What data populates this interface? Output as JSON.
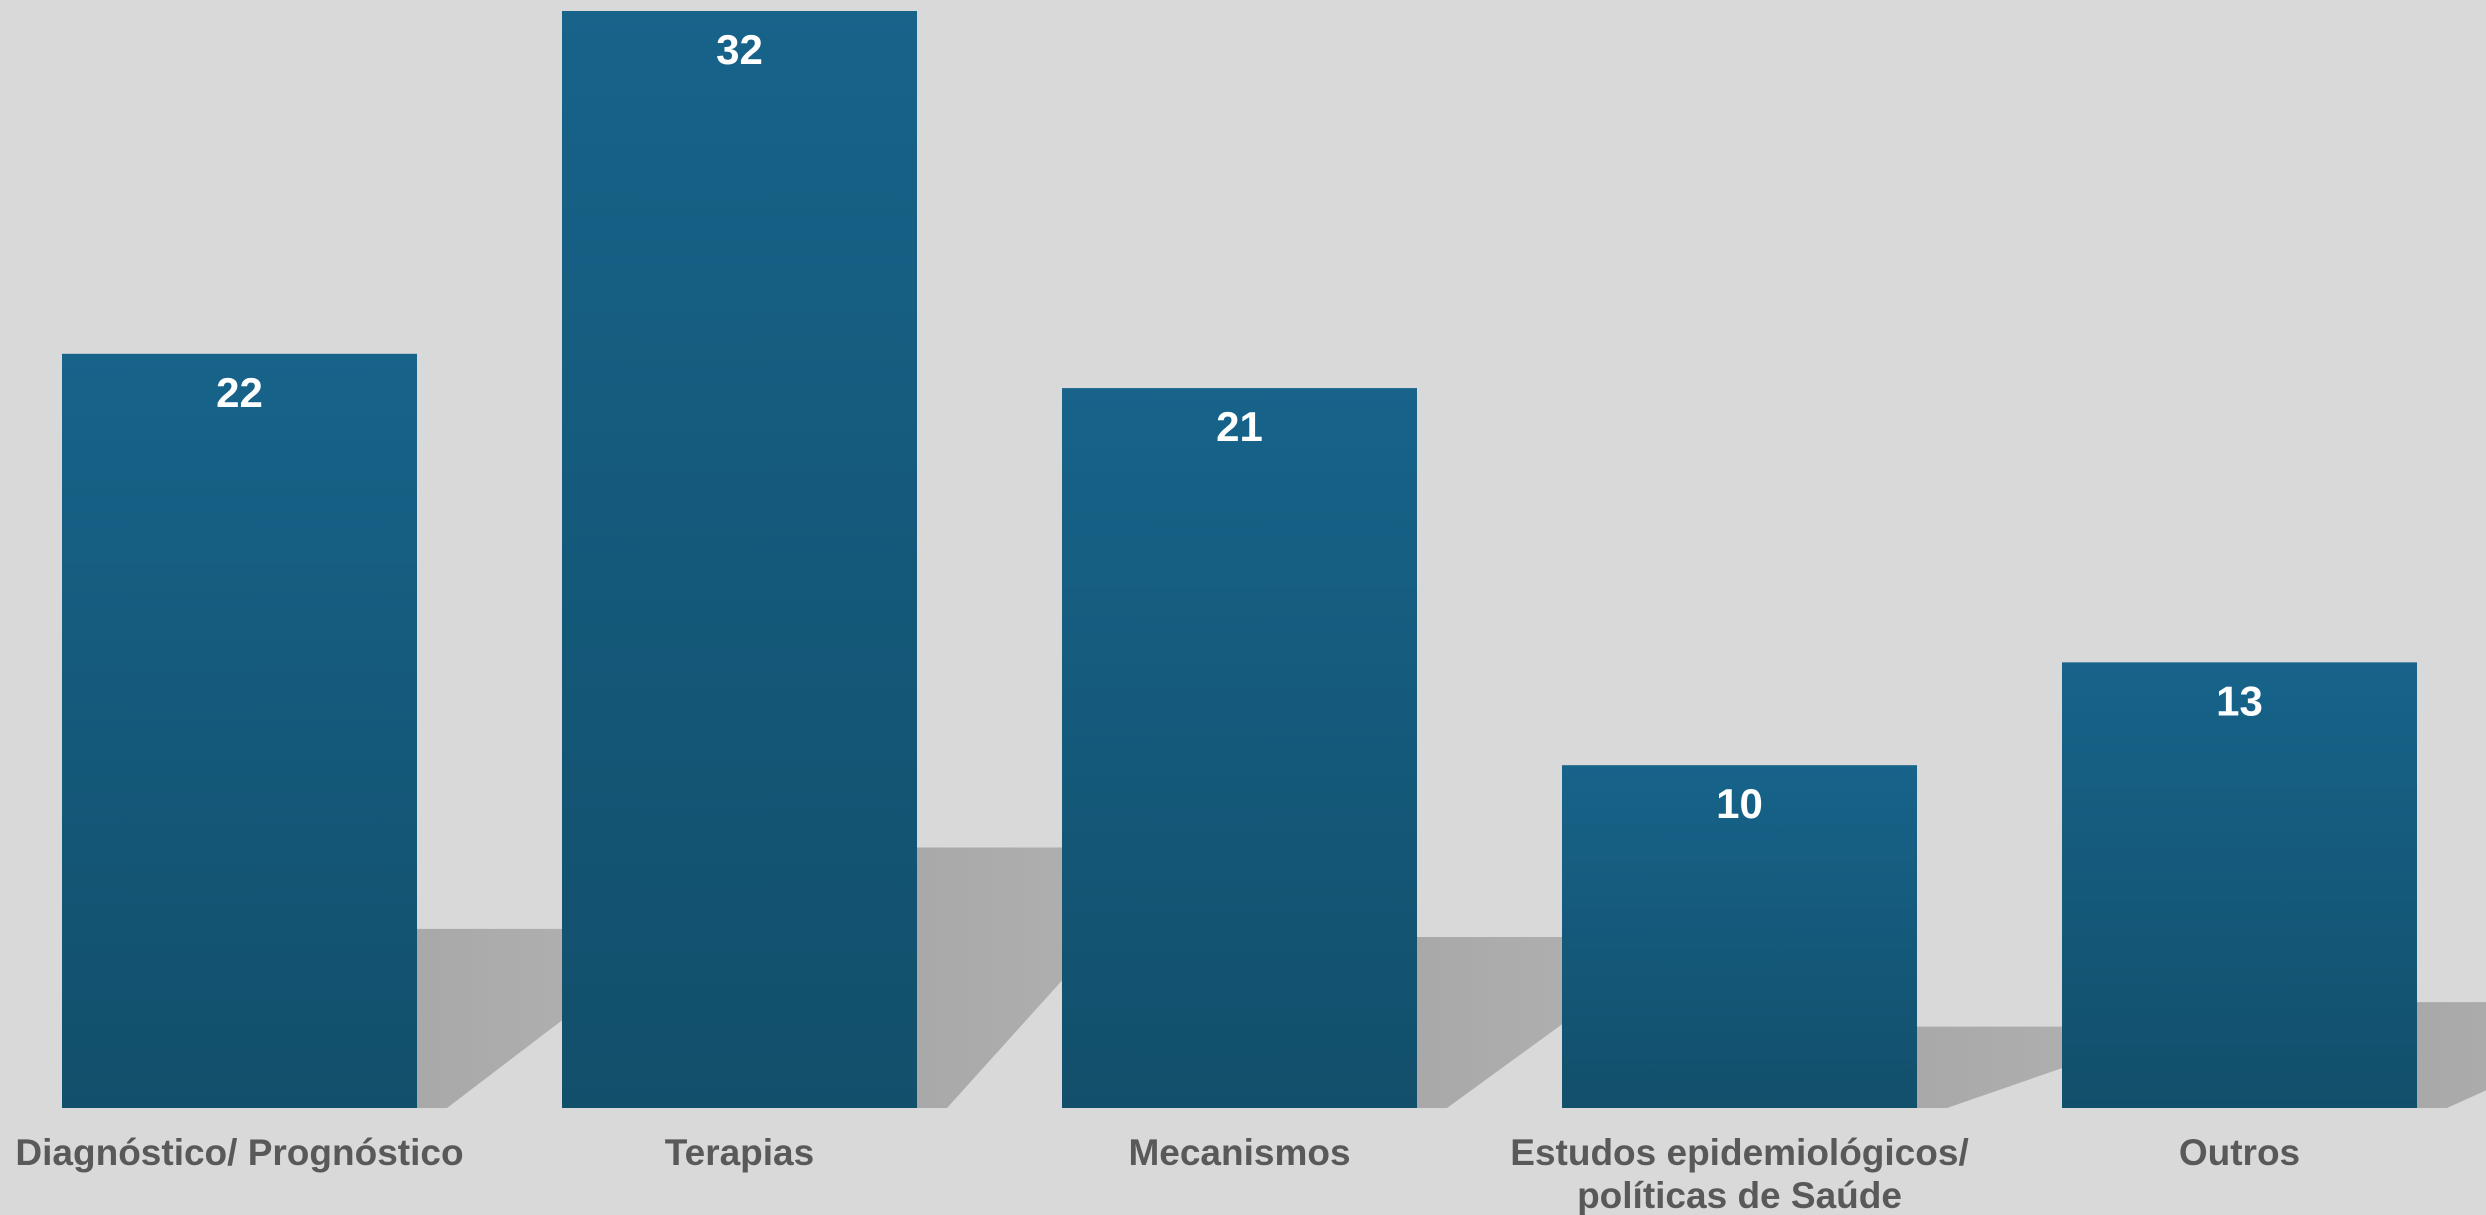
{
  "chart_data": {
    "type": "bar",
    "categories": [
      [
        "Diagnóstico/ Prognóstico"
      ],
      [
        "Terapias"
      ],
      [
        "Mecanismos"
      ],
      [
        "Estudos epidemiológicos/",
        "políticas de Saúde"
      ],
      [
        "Outros"
      ]
    ],
    "values": [
      22,
      32,
      21,
      10,
      13
    ],
    "data_labels": [
      "22",
      "32",
      "21",
      "10",
      "13"
    ],
    "title": "",
    "xlabel": "",
    "ylabel": "",
    "ylim": [
      0,
      32
    ],
    "grid": false,
    "legend": "none",
    "colors": {
      "background": "#d9d9d9",
      "bar_top": "#17638a",
      "bar_bottom": "#124f6b",
      "shadow": "#a6a6a6",
      "value_label": "#ffffff",
      "category_label": "#595959"
    }
  }
}
